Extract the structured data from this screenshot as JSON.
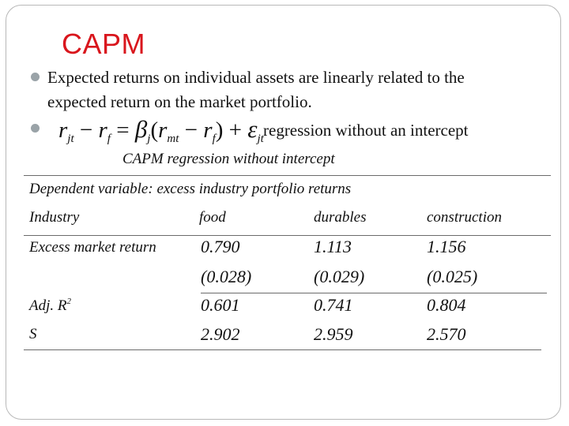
{
  "slide": {
    "title": "CAPM",
    "bullets": [
      {
        "line1": "Expected returns on individual assets are linearly related to the",
        "line2": "expected return on the market portfolio."
      },
      {
        "text": "regression without an intercept"
      }
    ],
    "formula": {
      "description": "r_jt - r_f = beta_j (r_mt - r_f) + epsilon_jt"
    }
  },
  "table": {
    "caption": "CAPM regression without intercept",
    "dependent_variable": "Dependent variable: excess industry portfolio returns",
    "row_label_industry": "Industry",
    "columns": [
      "food",
      "durables",
      "construction"
    ],
    "rows": [
      {
        "label": "Excess market return",
        "values": [
          "0.790",
          "1.113",
          "1.156"
        ],
        "std_errors": [
          "(0.028)",
          "(0.029)",
          "(0.025)"
        ]
      },
      {
        "label_base": "Adj. R",
        "label_sup": "2",
        "values": [
          "0.601",
          "0.741",
          "0.804"
        ]
      },
      {
        "label": "S",
        "values": [
          "2.902",
          "2.959",
          "2.570"
        ]
      }
    ]
  },
  "colors": {
    "title": "#d9161d",
    "bullet": "#9aa3a8",
    "text": "#111111",
    "rule": "#6b6b6b",
    "frame": "#b8b8b8"
  }
}
